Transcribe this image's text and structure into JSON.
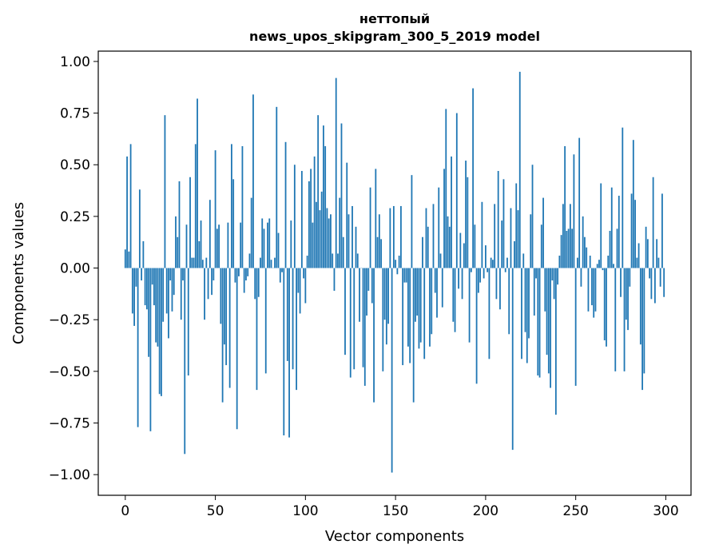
{
  "chart_data": {
    "type": "bar",
    "title_line1": "неттопый",
    "title_line2": "news_upos_skipgram_300_5_2019 model",
    "xlabel": "Vector components",
    "ylabel": "Components values",
    "xlim": [
      -15,
      314
    ],
    "ylim": [
      -1.1,
      1.05
    ],
    "xticks": [
      0,
      50,
      100,
      150,
      200,
      250,
      300
    ],
    "xtick_labels": [
      "0",
      "50",
      "100",
      "150",
      "200",
      "250",
      "300"
    ],
    "yticks": [
      1.0,
      0.75,
      0.5,
      0.25,
      0.0,
      -0.25,
      -0.5,
      -0.75,
      -1.0
    ],
    "ytick_labels": [
      "1.00",
      "0.75",
      "0.50",
      "0.25",
      "0.00",
      "−0.25",
      "−0.50",
      "−0.75",
      "−1.00"
    ],
    "grid": false,
    "bar_color": "#1f77b4",
    "values": [
      0.09,
      0.54,
      0.08,
      0.6,
      -0.22,
      -0.28,
      -0.09,
      -0.77,
      0.38,
      -0.06,
      0.13,
      -0.18,
      -0.2,
      -0.43,
      -0.79,
      -0.08,
      -0.18,
      -0.36,
      -0.38,
      -0.61,
      -0.62,
      -0.26,
      0.74,
      -0.22,
      -0.34,
      -0.06,
      -0.21,
      -0.13,
      0.25,
      0.15,
      0.42,
      -0.25,
      -0.06,
      -0.9,
      0.21,
      -0.52,
      0.44,
      0.05,
      0.05,
      0.6,
      0.82,
      0.13,
      0.23,
      0.04,
      -0.25,
      0.05,
      -0.15,
      0.33,
      -0.13,
      -0.06,
      0.57,
      0.19,
      0.21,
      -0.27,
      -0.65,
      -0.37,
      -0.47,
      0.22,
      -0.58,
      0.6,
      0.43,
      -0.07,
      -0.78,
      -0.04,
      0.22,
      0.59,
      -0.12,
      -0.06,
      -0.04,
      0.07,
      0.34,
      0.84,
      -0.15,
      -0.59,
      -0.14,
      0.05,
      0.24,
      0.19,
      -0.51,
      0.22,
      0.24,
      0.04,
      0.0,
      0.05,
      0.78,
      0.17,
      -0.07,
      -0.02,
      -0.81,
      0.61,
      -0.45,
      -0.82,
      0.23,
      -0.49,
      0.5,
      -0.59,
      -0.12,
      -0.22,
      0.47,
      -0.05,
      -0.17,
      0.06,
      0.42,
      0.48,
      0.22,
      0.54,
      0.32,
      0.74,
      0.28,
      0.37,
      0.69,
      0.59,
      0.29,
      0.24,
      0.26,
      0.07,
      -0.11,
      0.92,
      0.07,
      0.34,
      0.7,
      0.15,
      -0.42,
      0.51,
      0.26,
      -0.53,
      0.3,
      -0.49,
      0.2,
      0.07,
      -0.26,
      0.0,
      -0.48,
      -0.57,
      -0.23,
      -0.11,
      0.39,
      -0.17,
      -0.65,
      0.48,
      0.15,
      0.26,
      0.14,
      -0.5,
      -0.25,
      -0.37,
      -0.27,
      0.29,
      -0.99,
      0.3,
      0.04,
      -0.03,
      0.06,
      0.3,
      -0.47,
      -0.07,
      -0.07,
      -0.38,
      -0.46,
      0.45,
      -0.65,
      -0.26,
      -0.23,
      -0.39,
      -0.36,
      0.15,
      -0.44,
      0.29,
      0.2,
      -0.38,
      -0.32,
      0.31,
      -0.12,
      -0.24,
      0.39,
      0.07,
      -0.19,
      0.48,
      0.77,
      0.25,
      0.2,
      0.54,
      -0.26,
      -0.31,
      0.75,
      -0.1,
      0.17,
      -0.15,
      0.12,
      0.52,
      0.44,
      -0.36,
      -0.02,
      0.87,
      0.21,
      -0.56,
      -0.12,
      -0.07,
      0.32,
      -0.05,
      0.11,
      -0.02,
      -0.44,
      0.05,
      0.04,
      0.31,
      -0.15,
      0.47,
      -0.2,
      0.23,
      0.43,
      -0.02,
      0.05,
      -0.32,
      0.29,
      -0.88,
      0.13,
      0.41,
      0.28,
      0.95,
      -0.44,
      0.07,
      -0.31,
      -0.46,
      -0.34,
      0.26,
      0.5,
      -0.23,
      -0.05,
      -0.52,
      -0.53,
      0.21,
      0.34,
      -0.21,
      -0.42,
      -0.51,
      -0.58,
      -0.06,
      -0.15,
      -0.71,
      -0.08,
      0.06,
      0.16,
      0.31,
      0.59,
      0.18,
      0.19,
      0.31,
      0.19,
      0.55,
      -0.57,
      0.05,
      0.63,
      -0.09,
      0.25,
      0.15,
      0.1,
      -0.21,
      0.06,
      -0.18,
      -0.24,
      -0.21,
      0.02,
      0.04,
      0.41,
      -0.01,
      -0.35,
      -0.38,
      0.06,
      0.18,
      0.39,
      0.02,
      -0.5,
      0.19,
      0.35,
      -0.14,
      0.68,
      -0.5,
      -0.25,
      -0.3,
      -0.09,
      0.36,
      0.62,
      0.33,
      0.05,
      0.12,
      -0.37,
      -0.59,
      -0.51,
      0.2,
      0.14,
      -0.05,
      -0.15,
      0.44,
      -0.17,
      0.14,
      0.05,
      -0.09,
      0.36,
      -0.14
    ]
  }
}
